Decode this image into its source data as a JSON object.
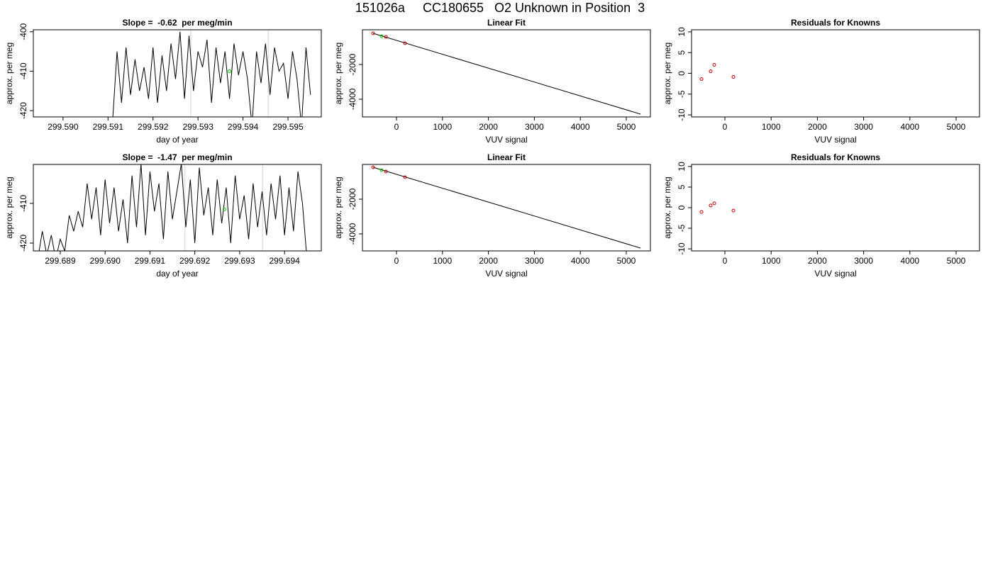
{
  "title": "151026a     CC180655   O2 Unknown in Position  3",
  "chart_data": [
    {
      "type": "line",
      "title": "Slope =  -0.62  per meg/min",
      "x_label": "day of year",
      "y_label": "approx. per meg",
      "xlim": [
        299.58934,
        299.59574
      ],
      "ylim": [
        -421.6,
        -399.5
      ],
      "xticks": [
        {
          "value": 299.59,
          "label": "299.590"
        },
        {
          "value": 299.591,
          "label": "299.591"
        },
        {
          "value": 299.592,
          "label": "299.592"
        },
        {
          "value": 299.593,
          "label": "299.593"
        },
        {
          "value": 299.594,
          "label": "299.594"
        },
        {
          "value": 299.595,
          "label": "299.595"
        }
      ],
      "yticks": [
        -400,
        -410,
        -420
      ],
      "color": "#000000",
      "x": [
        299.5911,
        299.5912,
        299.5913,
        299.5914,
        299.5915,
        299.5916,
        299.5917,
        299.5918,
        299.5919,
        299.592,
        299.5921,
        299.5922,
        299.5923,
        299.5924,
        299.5925,
        299.5926,
        299.5927,
        299.5928,
        299.5929,
        299.593,
        299.5931,
        299.5932,
        299.5933,
        299.5934,
        299.5935,
        299.5936,
        299.5937,
        299.5938,
        299.5939,
        299.594,
        299.5941,
        299.5942,
        299.5943,
        299.5944,
        299.5945,
        299.5946,
        299.5947,
        299.5948,
        299.5949,
        299.595,
        299.5951,
        299.5952,
        299.5953,
        299.5954,
        299.5955
      ],
      "values": [
        -423,
        -405,
        -418,
        -404,
        -416,
        -407,
        -415,
        -409,
        -417,
        -404,
        -418,
        -406,
        -415,
        -403,
        -412,
        -400,
        -417,
        -401,
        -415,
        -405,
        -409,
        -402,
        -418,
        -404,
        -413,
        -405,
        -417,
        -403,
        -411,
        -405,
        -412,
        -424,
        -405,
        -413,
        -403,
        -416,
        -404,
        -410,
        -408,
        -417,
        -405,
        -412,
        -424,
        -404,
        -416
      ],
      "vlines": [
        299.59284,
        299.59456
      ],
      "vline_color": "#d3d3d3",
      "point_x": 299.5937,
      "point_y": -410,
      "point_color": "#00cc00"
    },
    {
      "type": "scatter",
      "title": "Linear Fit",
      "x_label": "VUV signal",
      "y_label": "approx. per meg",
      "xlim": [
        -741,
        5525
      ],
      "ylim": [
        -5020,
        0
      ],
      "xticks": [
        0,
        1000,
        2000,
        3000,
        4000,
        5000
      ],
      "yticks": [
        -2000,
        -4000
      ],
      "x": [
        -509,
        -324,
        -231,
        185
      ],
      "values": [
        -204,
        -367,
        -408,
        -776
      ],
      "colors": [
        "#cc0000",
        "#00cc00",
        "#cc0000",
        "#cc0000"
      ],
      "fit_x": [
        -509,
        5309
      ],
      "fit_y": [
        -204,
        -4857
      ],
      "fit_color": "#000000"
    },
    {
      "type": "scatter",
      "title": "Residuals for Knowns",
      "x_label": "VUV signal",
      "y_label": "approx. per meg",
      "xlim": [
        -721,
        5506
      ],
      "ylim": [
        -10.5,
        10.5
      ],
      "xticks": [
        0,
        1000,
        2000,
        3000,
        4000,
        5000
      ],
      "yticks": [
        -10,
        -5,
        0,
        5,
        10
      ],
      "x": [
        -506,
        -307,
        -230,
        184
      ],
      "values": [
        -1.37,
        0.5,
        2.05,
        -0.85
      ],
      "color": "#cc0000"
    },
    {
      "type": "line",
      "title": "Slope =  -1.47  per meg/min",
      "x_label": "day of year",
      "y_label": "approx. per meg",
      "xlim": [
        299.6884,
        299.69482
      ],
      "ylim": [
        -421.96,
        -400.2
      ],
      "xticks": [
        {
          "value": 299.689,
          "label": "299.689"
        },
        {
          "value": 299.69,
          "label": "299.690"
        },
        {
          "value": 299.691,
          "label": "299.691"
        },
        {
          "value": 299.692,
          "label": "299.692"
        },
        {
          "value": 299.693,
          "label": "299.693"
        },
        {
          "value": 299.694,
          "label": "299.694"
        }
      ],
      "yticks": [
        -410,
        -420
      ],
      "color": "#000000",
      "x": [
        299.6885,
        299.6886,
        299.6887,
        299.6888,
        299.6889,
        299.689,
        299.6891,
        299.6892,
        299.6893,
        299.6894,
        299.6895,
        299.6896,
        299.6897,
        299.6898,
        299.6899,
        299.69,
        299.6901,
        299.6902,
        299.6903,
        299.6904,
        299.6905,
        299.6906,
        299.6907,
        299.6908,
        299.6909,
        299.691,
        299.6911,
        299.6912,
        299.6913,
        299.6914,
        299.6915,
        299.6916,
        299.6917,
        299.6918,
        299.6919,
        299.692,
        299.6921,
        299.6922,
        299.6923,
        299.6924,
        299.6925,
        299.6926,
        299.6927,
        299.6928,
        299.6929,
        299.693,
        299.6931,
        299.6932,
        299.6933,
        299.6934,
        299.6935,
        299.6936,
        299.6937,
        299.6938,
        299.6939,
        299.694,
        299.6941,
        299.6942,
        299.6943,
        299.6944,
        299.6945
      ],
      "values": [
        -424,
        -417,
        -423,
        -418,
        -424,
        -419,
        -422,
        -413,
        -417,
        -412,
        -416,
        -405,
        -414,
        -406,
        -418,
        -404,
        -415,
        -406,
        -417,
        -409,
        -420,
        -403,
        -416,
        -400,
        -418,
        -402,
        -412,
        -405,
        -419,
        -402,
        -414,
        -407,
        -400,
        -416,
        -404,
        -420,
        -401,
        -413,
        -406,
        -418,
        -404,
        -415,
        -406,
        -420,
        -403,
        -414,
        -408,
        -419,
        -405,
        -416,
        -407,
        -418,
        -405,
        -414,
        -403,
        -418,
        -406,
        -417,
        -402,
        -410,
        -424
      ],
      "vlines": [
        299.69178,
        299.69351
      ],
      "vline_color": "#d3d3d3",
      "point_x": 299.69266,
      "point_y": -411.5,
      "point_color": "#00cc00"
    },
    {
      "type": "scatter",
      "title": "Linear Fit",
      "x_label": "VUV signal",
      "y_label": "approx. per meg",
      "xlim": [
        -741,
        5525
      ],
      "ylim": [
        -4980,
        0
      ],
      "xticks": [
        0,
        1000,
        2000,
        3000,
        4000,
        5000
      ],
      "yticks": [
        -2000,
        -4000
      ],
      "x": [
        -509,
        -324,
        -231,
        185
      ],
      "values": [
        -163,
        -327,
        -408,
        -735
      ],
      "colors": [
        "#cc0000",
        "#00cc00",
        "#cc0000",
        "#cc0000"
      ],
      "fit_x": [
        -509,
        5309
      ],
      "fit_y": [
        -163,
        -4816
      ],
      "fit_color": "#000000"
    },
    {
      "type": "scatter",
      "title": "Residuals for Knowns",
      "x_label": "VUV signal",
      "y_label": "approx. per meg",
      "xlim": [
        -721,
        5506
      ],
      "ylim": [
        -10.5,
        10.5
      ],
      "xticks": [
        0,
        1000,
        2000,
        3000,
        4000,
        5000
      ],
      "yticks": [
        -10,
        -5,
        0,
        5,
        10
      ],
      "x": [
        -506,
        -307,
        -230,
        184
      ],
      "values": [
        -1.05,
        0.53,
        1.05,
        -0.7
      ],
      "color": "#cc0000"
    }
  ]
}
